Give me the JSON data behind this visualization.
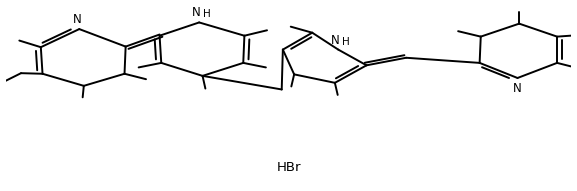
{
  "background_color": "#ffffff",
  "line_color": "#000000",
  "line_width": 1.4,
  "font_size": 8.5,
  "hbr_label": "HBr",
  "xlim": [
    0,
    10
  ],
  "ylim": [
    -2.0,
    4.2
  ],
  "figsize": [
    5.77,
    1.91
  ],
  "dpi": 100
}
